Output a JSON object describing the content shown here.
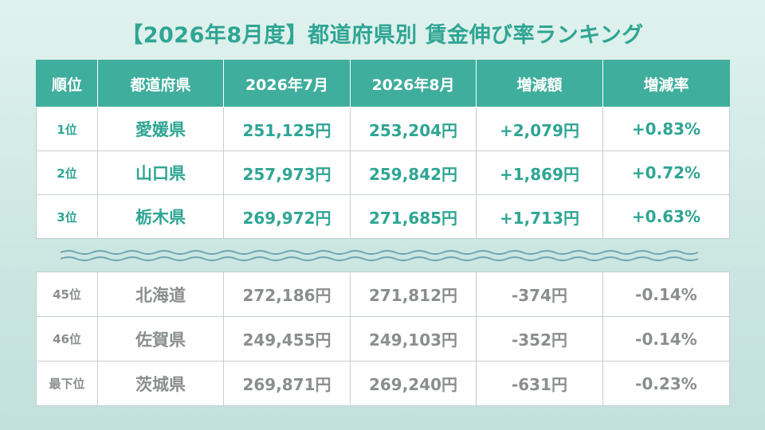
{
  "title": "【2026年8月度】都道府県別 賃金伸び率ランキング",
  "headers": [
    "順位",
    "都道府県",
    "2026年7月",
    "2026年8月",
    "増減額",
    "増減率"
  ],
  "top_rows": [
    [
      "1位",
      "愛媛県",
      "251,125円",
      "253,204円",
      "+2,079円",
      "+0.83%"
    ],
    [
      "2位",
      "山口県",
      "257,973円",
      "259,842円",
      "+1,869円",
      "+0.72%"
    ],
    [
      "3位",
      "栃木県",
      "269,972円",
      "271,685円",
      "+1,713円",
      "+0.63%"
    ]
  ],
  "bottom_rows": [
    [
      "45位",
      "北海道",
      "272,186円",
      "271,812円",
      "-374円",
      "-0.14%"
    ],
    [
      "46位",
      "佐賀県",
      "249,455円",
      "249,103円",
      "-352円",
      "-0.14%"
    ],
    [
      "最下位",
      "茨城県",
      "269,871円",
      "269,240円",
      "-631円",
      "-0.23%"
    ]
  ],
  "colors": {
    "accent": "#3fae9c",
    "accent_text": "#2fa593",
    "muted_text": "#8a8e8d",
    "background": "#d2eae6"
  }
}
